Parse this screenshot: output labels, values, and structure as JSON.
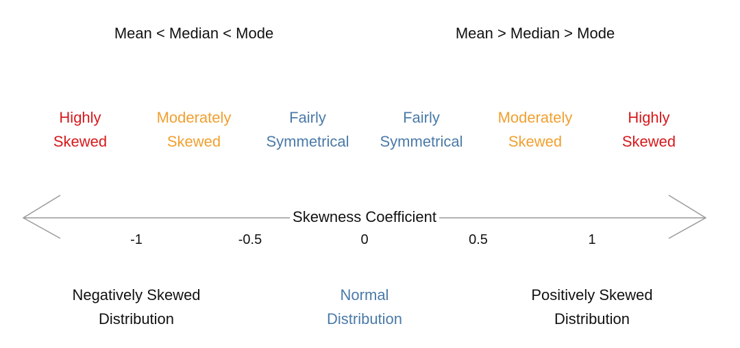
{
  "top_labels": {
    "left": "Mean < Median < Mode",
    "right": "Mean > Median > Mode"
  },
  "categories": [
    {
      "line1": "Highly",
      "line2": "Skewed",
      "color": "#d7191c"
    },
    {
      "line1": "Moderately",
      "line2": "Skewed",
      "color": "#f0a030"
    },
    {
      "line1": "Fairly",
      "line2": "Symmetrical",
      "color": "#4a7aa8"
    },
    {
      "line1": "Fairly",
      "line2": "Symmetrical",
      "color": "#4a7aa8"
    },
    {
      "line1": "Moderately",
      "line2": "Skewed",
      "color": "#f0a030"
    },
    {
      "line1": "Highly",
      "line2": "Skewed",
      "color": "#d7191c"
    }
  ],
  "axis": {
    "title": "Skewness Coefficient",
    "ticks": [
      "-1",
      "-0.5",
      "0",
      "0.5",
      "1"
    ],
    "line_color": "#999999"
  },
  "bottom_labels": {
    "left": {
      "line1": "Negatively Skewed",
      "line2": "Distribution",
      "color": "#111111"
    },
    "center": {
      "line1": "Normal",
      "line2": "Distribution",
      "color": "#4a7aa8"
    },
    "right": {
      "line1": "Positively Skewed",
      "line2": "Distribution",
      "color": "#111111"
    }
  }
}
